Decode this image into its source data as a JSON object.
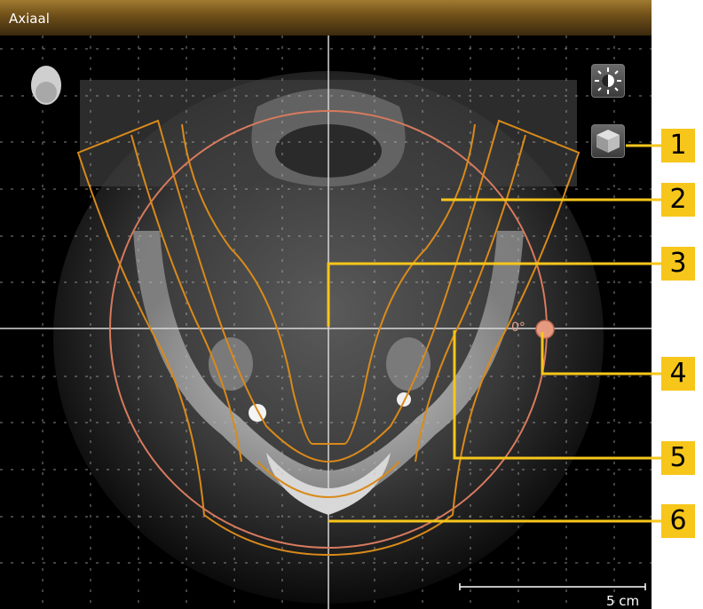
{
  "view": {
    "title": "Axiaal",
    "scale_bar_label": "5 cm",
    "rotation_angle_label": "0°"
  },
  "toolbar": [
    {
      "name": "brightness-contrast-button",
      "icon": "sun-half-icon"
    },
    {
      "name": "3d-view-button",
      "icon": "cube-icon"
    }
  ],
  "orientation_icon": "head-icon",
  "callouts": [
    "1",
    "2",
    "3",
    "4",
    "5",
    "6"
  ],
  "colors": {
    "panoramic_curve": "#d98a1a",
    "rotation_circle": "#d77a5e",
    "callout_bg": "#f7c61b",
    "crosshair": "#d8d8d8"
  }
}
